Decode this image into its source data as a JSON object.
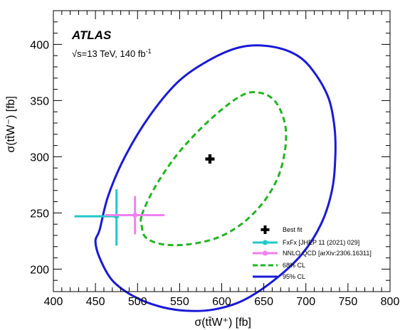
{
  "chart_data": {
    "type": "scatter",
    "xlabel": "σ(tt̄W⁺) [fb]",
    "ylabel": "σ(tt̄W⁻) [fb]",
    "xlim": [
      400,
      800
    ],
    "ylim": [
      180,
      430
    ],
    "x_ticks": [
      "400",
      "450",
      "500",
      "550",
      "600",
      "650",
      "700",
      "750",
      "800"
    ],
    "y_ticks": [
      "200",
      "250",
      "300",
      "350",
      "400"
    ],
    "annotations": {
      "experiment": "ATLAS",
      "energy": "√s=13 TeV, 140 fb",
      "energy_sup": "-1"
    },
    "legend_position": "bottom-right",
    "best_fit": {
      "name": "Best fit",
      "x": 586,
      "y": 298,
      "color": "#000000"
    },
    "predictions": [
      {
        "name": "FxFx [JHEP 11 (2021) 029]",
        "x": 475,
        "y": 247,
        "x_err": [
          50,
          0
        ],
        "y_err": [
          26,
          24
        ],
        "color": "#22c8c8"
      },
      {
        "name": "NNLO QCD [arXiv:2306.16311]",
        "x": 497,
        "y": 248,
        "x_err": [
          35,
          35
        ],
        "y_err": [
          17,
          17
        ],
        "color": "#f080f0"
      }
    ],
    "contours": [
      {
        "name": "68% CL",
        "style": "dashed",
        "color": "#22b422",
        "points": [
          [
            505,
            248
          ],
          [
            520,
            272
          ],
          [
            545,
            300
          ],
          [
            575,
            325
          ],
          [
            605,
            345
          ],
          [
            628,
            356
          ],
          [
            645,
            357
          ],
          [
            660,
            352
          ],
          [
            670,
            341
          ],
          [
            676,
            325
          ],
          [
            675,
            305
          ],
          [
            667,
            282
          ],
          [
            650,
            260
          ],
          [
            625,
            241
          ],
          [
            595,
            228
          ],
          [
            560,
            222
          ],
          [
            530,
            222
          ],
          [
            510,
            228
          ],
          [
            505,
            238
          ]
        ]
      },
      {
        "name": "95% CL",
        "style": "solid",
        "color": "#1a1ad6",
        "points": [
          [
            455,
            235
          ],
          [
            465,
            265
          ],
          [
            485,
            300
          ],
          [
            515,
            337
          ],
          [
            550,
            368
          ],
          [
            590,
            388
          ],
          [
            625,
            398
          ],
          [
            660,
            398
          ],
          [
            690,
            390
          ],
          [
            710,
            375
          ],
          [
            727,
            352
          ],
          [
            734,
            326
          ],
          [
            735,
            300
          ],
          [
            731,
            270
          ],
          [
            718,
            240
          ],
          [
            695,
            213
          ],
          [
            662,
            190
          ],
          [
            625,
            172
          ],
          [
            590,
            164
          ],
          [
            557,
            163
          ],
          [
            525,
            167
          ],
          [
            495,
            176
          ],
          [
            470,
            190
          ],
          [
            455,
            210
          ],
          [
            450,
            225
          ]
        ]
      }
    ]
  }
}
